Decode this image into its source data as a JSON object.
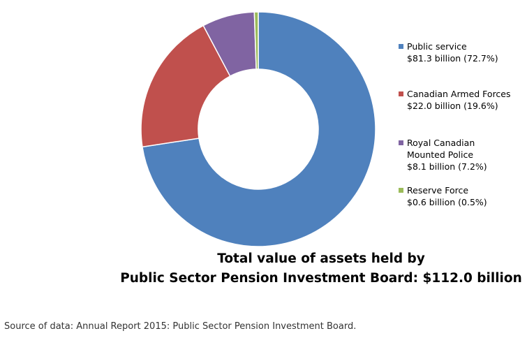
{
  "chart_data": {
    "type": "pie",
    "variant": "donut",
    "title_lines": [
      "Total value of assets held by",
      "Public Sector Pension Investment Board: $112.0 billion"
    ],
    "slices": [
      {
        "label_lines": [
          "Public service"
        ],
        "detail": "$81.3 billion (72.7%)",
        "value": 81.3,
        "percent": 72.7,
        "color": "#4F81BD"
      },
      {
        "label_lines": [
          "Canadian Armed Forces"
        ],
        "detail": "$22.0 billion (19.6%)",
        "value": 22.0,
        "percent": 19.6,
        "color": "#C0504D"
      },
      {
        "label_lines": [
          "Royal Canadian",
          "Mounted Police"
        ],
        "detail": "$8.1 billion (7.2%)",
        "value": 8.1,
        "percent": 7.2,
        "color": "#8064A2"
      },
      {
        "label_lines": [
          "Reserve Force"
        ],
        "detail": "$0.6 billion (0.5%)",
        "value": 0.6,
        "percent": 0.5,
        "color": "#9BBB59"
      }
    ],
    "start_angle": "top, clockwise",
    "legend_position": "right"
  },
  "source": "Source of data: Annual Report 2015: Public Sector Pension Investment Board."
}
